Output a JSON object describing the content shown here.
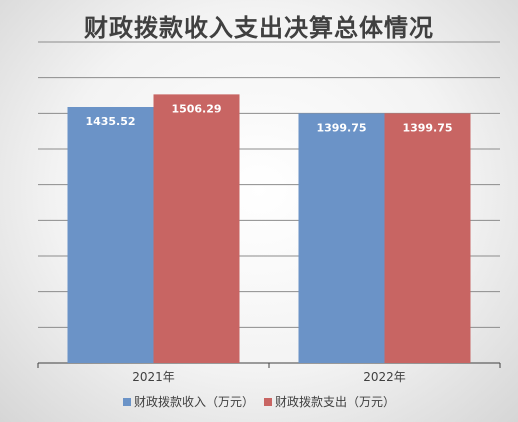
{
  "chart_data": {
    "type": "bar",
    "title": "财政拨款收入支出决算总体情况",
    "categories": [
      "2021年",
      "2022年"
    ],
    "series": [
      {
        "name": "财政拨款收入（万元）",
        "values": [
          1435.52,
          1399.75
        ],
        "color": "#6b93c7"
      },
      {
        "name": "财政拨款支出（万元）",
        "values": [
          1506.29,
          1399.75
        ],
        "color": "#c86563"
      }
    ],
    "ylim": [
      0,
      1800
    ],
    "grid": true,
    "legend_position": "bottom"
  }
}
